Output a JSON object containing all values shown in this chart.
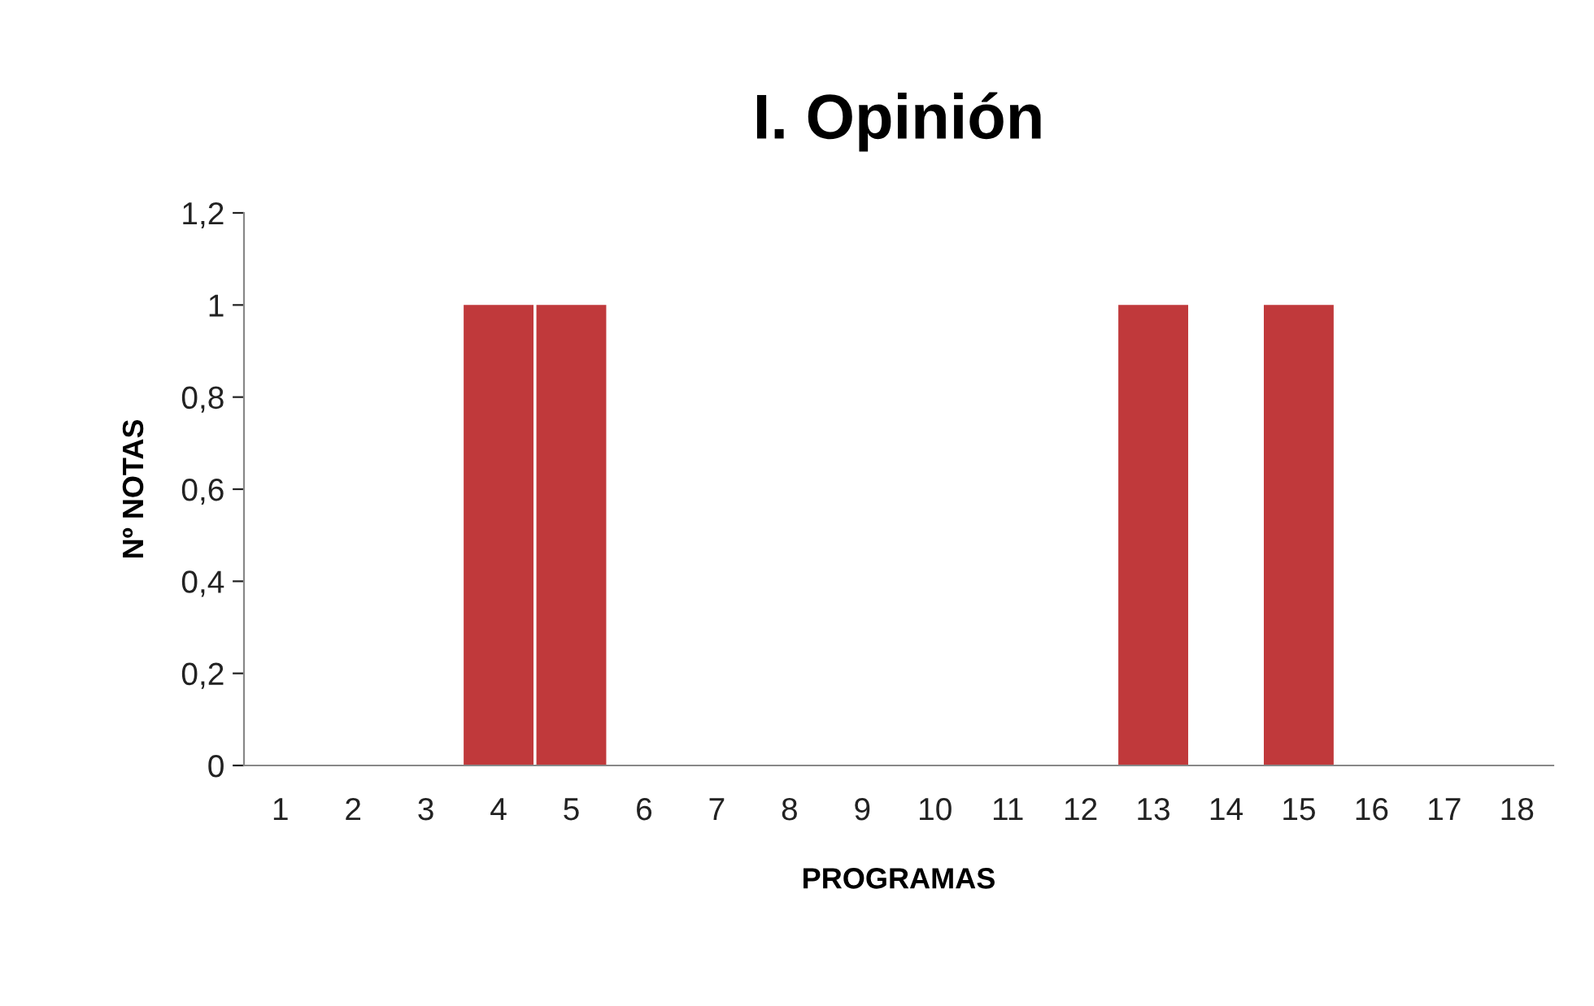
{
  "chart_data": {
    "type": "bar",
    "title": "I. Opinión",
    "xlabel": "PROGRAMAS",
    "ylabel": "Nº NOTAS",
    "categories": [
      "1",
      "2",
      "3",
      "4",
      "5",
      "6",
      "7",
      "8",
      "9",
      "10",
      "11",
      "12",
      "13",
      "14",
      "15",
      "16",
      "17",
      "18"
    ],
    "values": [
      0,
      0,
      0,
      1,
      1,
      0,
      0,
      0,
      0,
      0,
      0,
      0,
      1,
      0,
      1,
      0,
      0,
      0
    ],
    "color": "#c0393b",
    "ylim": [
      0,
      1.2
    ],
    "yticks": [
      0,
      {
        "value": 0.2,
        "label": "0,2"
      },
      {
        "value": 0.4,
        "label": "0,4"
      },
      {
        "value": 0.6,
        "label": "0,6"
      },
      {
        "value": 0.8,
        "label": "0,8"
      },
      1,
      {
        "value": 1.2,
        "label": "1,2"
      }
    ],
    "grid": false,
    "legend": false
  }
}
